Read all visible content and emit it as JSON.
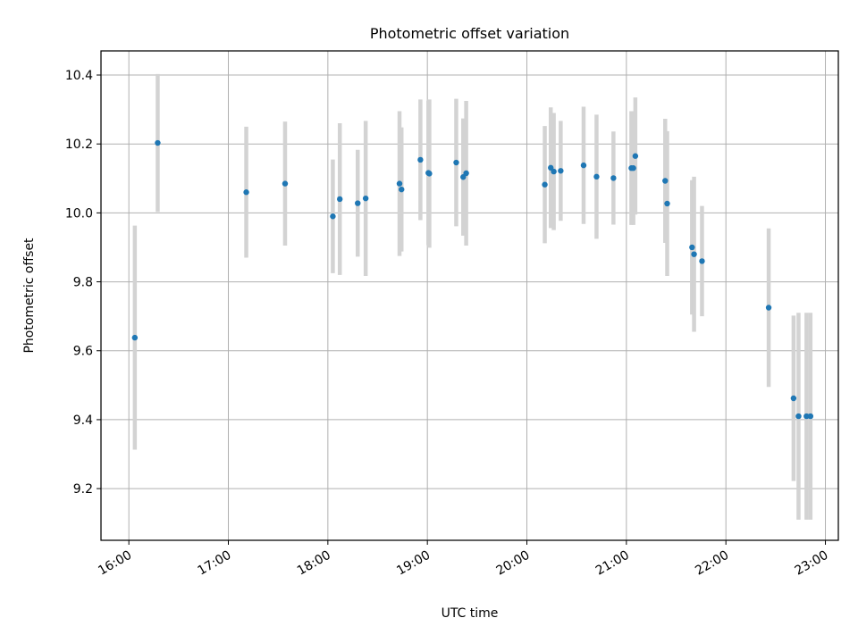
{
  "chart_data": {
    "type": "scatter",
    "title": "Photometric offset variation",
    "xlabel": "UTC time",
    "ylabel": "Photometric offset",
    "grid": true,
    "legend": "none",
    "xlim_hours": [
      15.72,
      23.13
    ],
    "ylim": [
      9.05,
      10.47
    ],
    "x_ticks": [
      {
        "value": 16,
        "label": "16:00"
      },
      {
        "value": 17,
        "label": "17:00"
      },
      {
        "value": 18,
        "label": "18:00"
      },
      {
        "value": 19,
        "label": "19:00"
      },
      {
        "value": 20,
        "label": "20:00"
      },
      {
        "value": 21,
        "label": "21:00"
      },
      {
        "value": 22,
        "label": "22:00"
      },
      {
        "value": 23,
        "label": "23:00"
      }
    ],
    "y_ticks": [
      {
        "value": 9.2,
        "label": "9.2"
      },
      {
        "value": 9.4,
        "label": "9.4"
      },
      {
        "value": 9.6,
        "label": "9.6"
      },
      {
        "value": 9.8,
        "label": "9.8"
      },
      {
        "value": 10.0,
        "label": "10.0"
      },
      {
        "value": 10.2,
        "label": "10.2"
      },
      {
        "value": 10.4,
        "label": "10.4"
      }
    ],
    "marker_color": "#1f77b4",
    "errorbar_color": "#d3d3d3",
    "series": [
      {
        "name": "offset",
        "points": [
          {
            "t": 16.06,
            "y": 9.638,
            "err": 0.325
          },
          {
            "t": 16.29,
            "y": 10.203,
            "err": 0.2
          },
          {
            "t": 17.18,
            "y": 10.06,
            "err": 0.19
          },
          {
            "t": 17.57,
            "y": 10.085,
            "err": 0.18
          },
          {
            "t": 18.05,
            "y": 9.99,
            "err": 0.165
          },
          {
            "t": 18.12,
            "y": 10.04,
            "err": 0.22
          },
          {
            "t": 18.3,
            "y": 10.028,
            "err": 0.155
          },
          {
            "t": 18.38,
            "y": 10.042,
            "err": 0.225
          },
          {
            "t": 18.72,
            "y": 10.085,
            "err": 0.21
          },
          {
            "t": 18.74,
            "y": 10.068,
            "err": 0.18
          },
          {
            "t": 18.93,
            "y": 10.154,
            "err": 0.175
          },
          {
            "t": 19.01,
            "y": 10.116,
            "err": 0.21
          },
          {
            "t": 19.02,
            "y": 10.114,
            "err": 0.215
          },
          {
            "t": 19.29,
            "y": 10.146,
            "err": 0.185
          },
          {
            "t": 19.36,
            "y": 10.104,
            "err": 0.17
          },
          {
            "t": 19.39,
            "y": 10.115,
            "err": 0.21
          },
          {
            "t": 20.18,
            "y": 10.082,
            "err": 0.17
          },
          {
            "t": 20.24,
            "y": 10.131,
            "err": 0.175
          },
          {
            "t": 20.27,
            "y": 10.12,
            "err": 0.17
          },
          {
            "t": 20.34,
            "y": 10.122,
            "err": 0.145
          },
          {
            "t": 20.57,
            "y": 10.138,
            "err": 0.17
          },
          {
            "t": 20.7,
            "y": 10.105,
            "err": 0.18
          },
          {
            "t": 20.87,
            "y": 10.101,
            "err": 0.135
          },
          {
            "t": 21.05,
            "y": 10.13,
            "err": 0.165
          },
          {
            "t": 21.07,
            "y": 10.13,
            "err": 0.165
          },
          {
            "t": 21.09,
            "y": 10.165,
            "err": 0.17
          },
          {
            "t": 21.39,
            "y": 10.093,
            "err": 0.18
          },
          {
            "t": 21.41,
            "y": 10.027,
            "err": 0.21
          },
          {
            "t": 21.66,
            "y": 9.9,
            "err": 0.195
          },
          {
            "t": 21.68,
            "y": 9.88,
            "err": 0.225
          },
          {
            "t": 21.76,
            "y": 9.86,
            "err": 0.16
          },
          {
            "t": 22.43,
            "y": 9.725,
            "err": 0.23
          },
          {
            "t": 22.68,
            "y": 9.462,
            "err": 0.24
          },
          {
            "t": 22.73,
            "y": 9.41,
            "err": 0.3
          },
          {
            "t": 22.81,
            "y": 9.41,
            "err": 0.3
          },
          {
            "t": 22.85,
            "y": 9.41,
            "err": 0.3
          }
        ]
      }
    ]
  }
}
